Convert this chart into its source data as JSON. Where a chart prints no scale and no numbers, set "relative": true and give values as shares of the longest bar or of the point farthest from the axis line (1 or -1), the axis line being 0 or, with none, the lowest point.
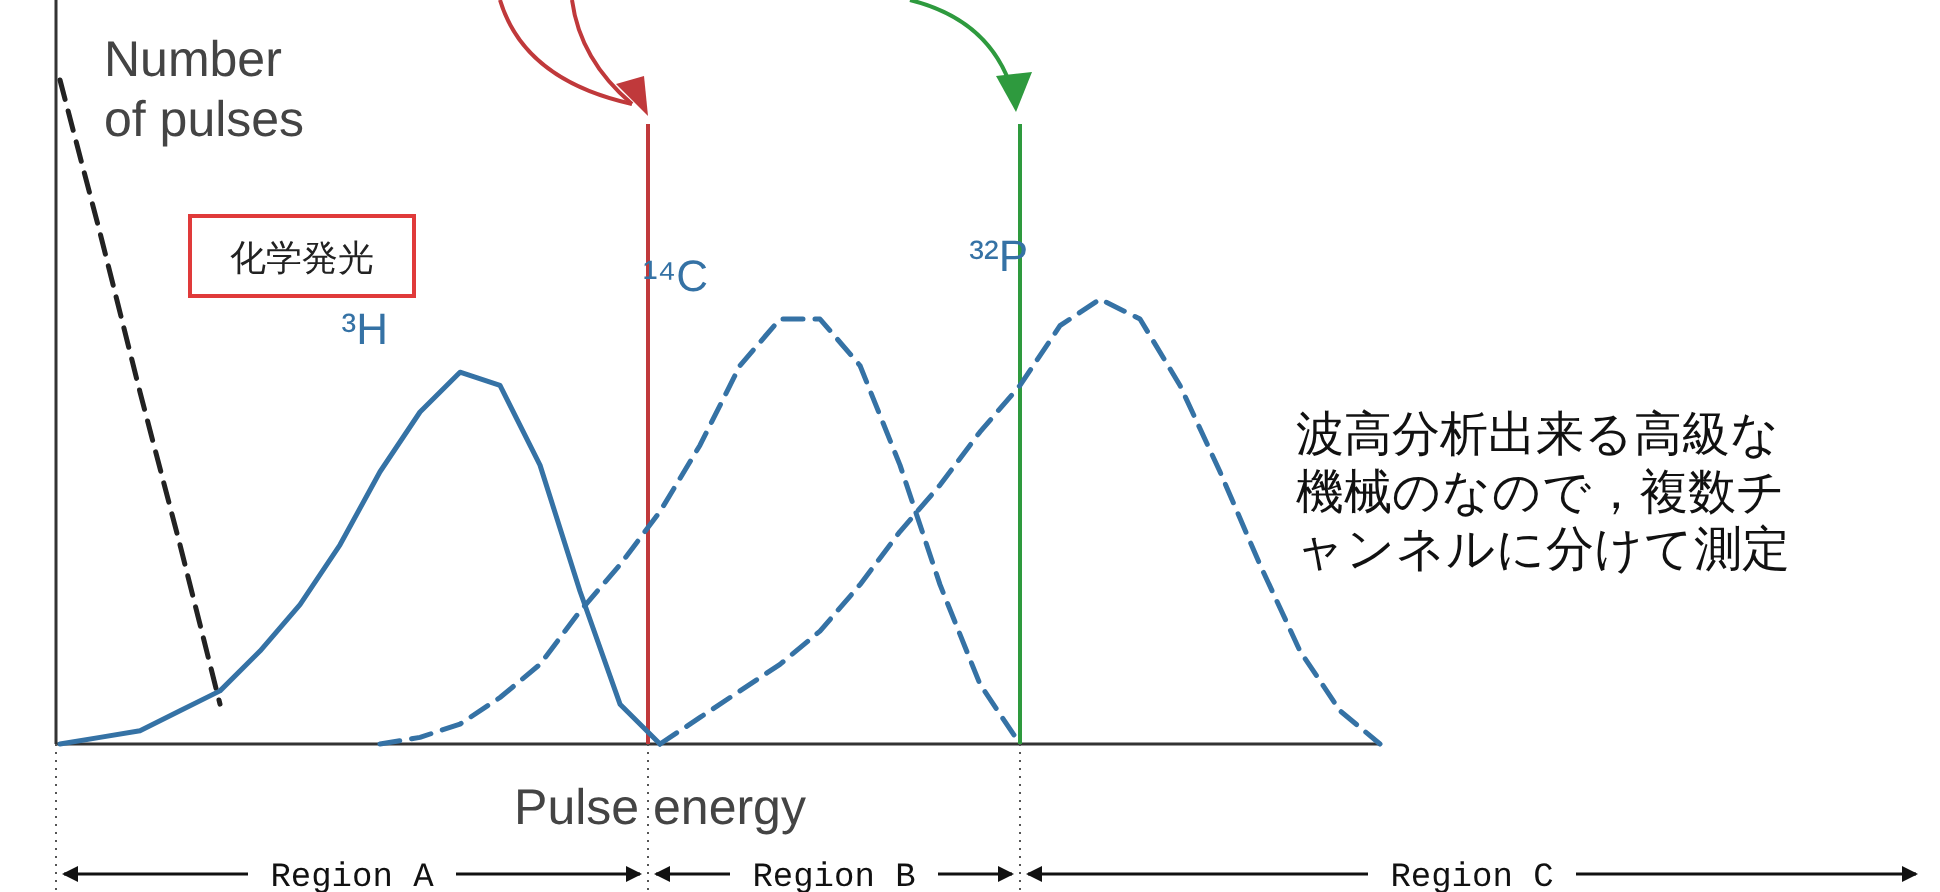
{
  "chart_data": {
    "type": "line",
    "relative": true,
    "ylabel": "Number\nof pulses",
    "xlabel": "Pulse energy",
    "legend": false,
    "categories": [
      null,
      null,
      null,
      null,
      null,
      null,
      null,
      null,
      null,
      null,
      null,
      null,
      null,
      null,
      null,
      null,
      null,
      null,
      null,
      null,
      null,
      null,
      null,
      null,
      null,
      null,
      null,
      null,
      null,
      null,
      null,
      null,
      null,
      null
    ],
    "series": [
      {
        "name": "化学発光",
        "color": "#222222",
        "line_style": "dashed",
        "values": [
          1.0,
          0.77,
          0.53,
          0.3,
          0.06,
          null,
          null,
          null,
          null,
          null,
          null,
          null,
          null,
          null,
          null,
          null,
          null,
          null,
          null,
          null,
          null,
          null,
          null,
          null,
          null,
          null,
          null,
          null,
          null,
          null,
          null,
          null,
          null,
          null
        ]
      },
      {
        "name": "³H",
        "color": "#3572a5",
        "line_style": "solid",
        "values": [
          0,
          0.01,
          0.02,
          0.05,
          0.08,
          0.14,
          0.21,
          0.3,
          0.41,
          0.5,
          0.56,
          0.54,
          0.42,
          0.23,
          0.06,
          0,
          null,
          null,
          null,
          null,
          null,
          null,
          null,
          null,
          null,
          null,
          null,
          null,
          null,
          null,
          null,
          null,
          null,
          null
        ]
      },
      {
        "name": "¹⁴C",
        "color": "#3572a5",
        "line_style": "dashed",
        "values": [
          null,
          null,
          null,
          null,
          null,
          null,
          null,
          null,
          0,
          0.01,
          0.03,
          0.07,
          0.12,
          0.2,
          0.27,
          0.35,
          0.45,
          0.57,
          0.64,
          0.64,
          0.57,
          0.42,
          0.24,
          0.09,
          0,
          null,
          null,
          null,
          null,
          null,
          null,
          null,
          null,
          null
        ]
      },
      {
        "name": "³²P",
        "color": "#3572a5",
        "line_style": "dashed",
        "values": [
          null,
          null,
          null,
          null,
          null,
          null,
          null,
          null,
          null,
          null,
          null,
          null,
          null,
          null,
          null,
          0,
          0.04,
          0.08,
          0.12,
          0.17,
          0.24,
          0.32,
          0.39,
          0.47,
          0.54,
          0.63,
          0.67,
          0.64,
          0.54,
          0.41,
          0.27,
          0.14,
          0.05,
          0
        ]
      }
    ],
    "annotations": [
      "波高分析出来る高級な機械のなので，複数チャンネルに分けて測定",
      "Region A",
      "Region B",
      "Region C"
    ]
  }
}
